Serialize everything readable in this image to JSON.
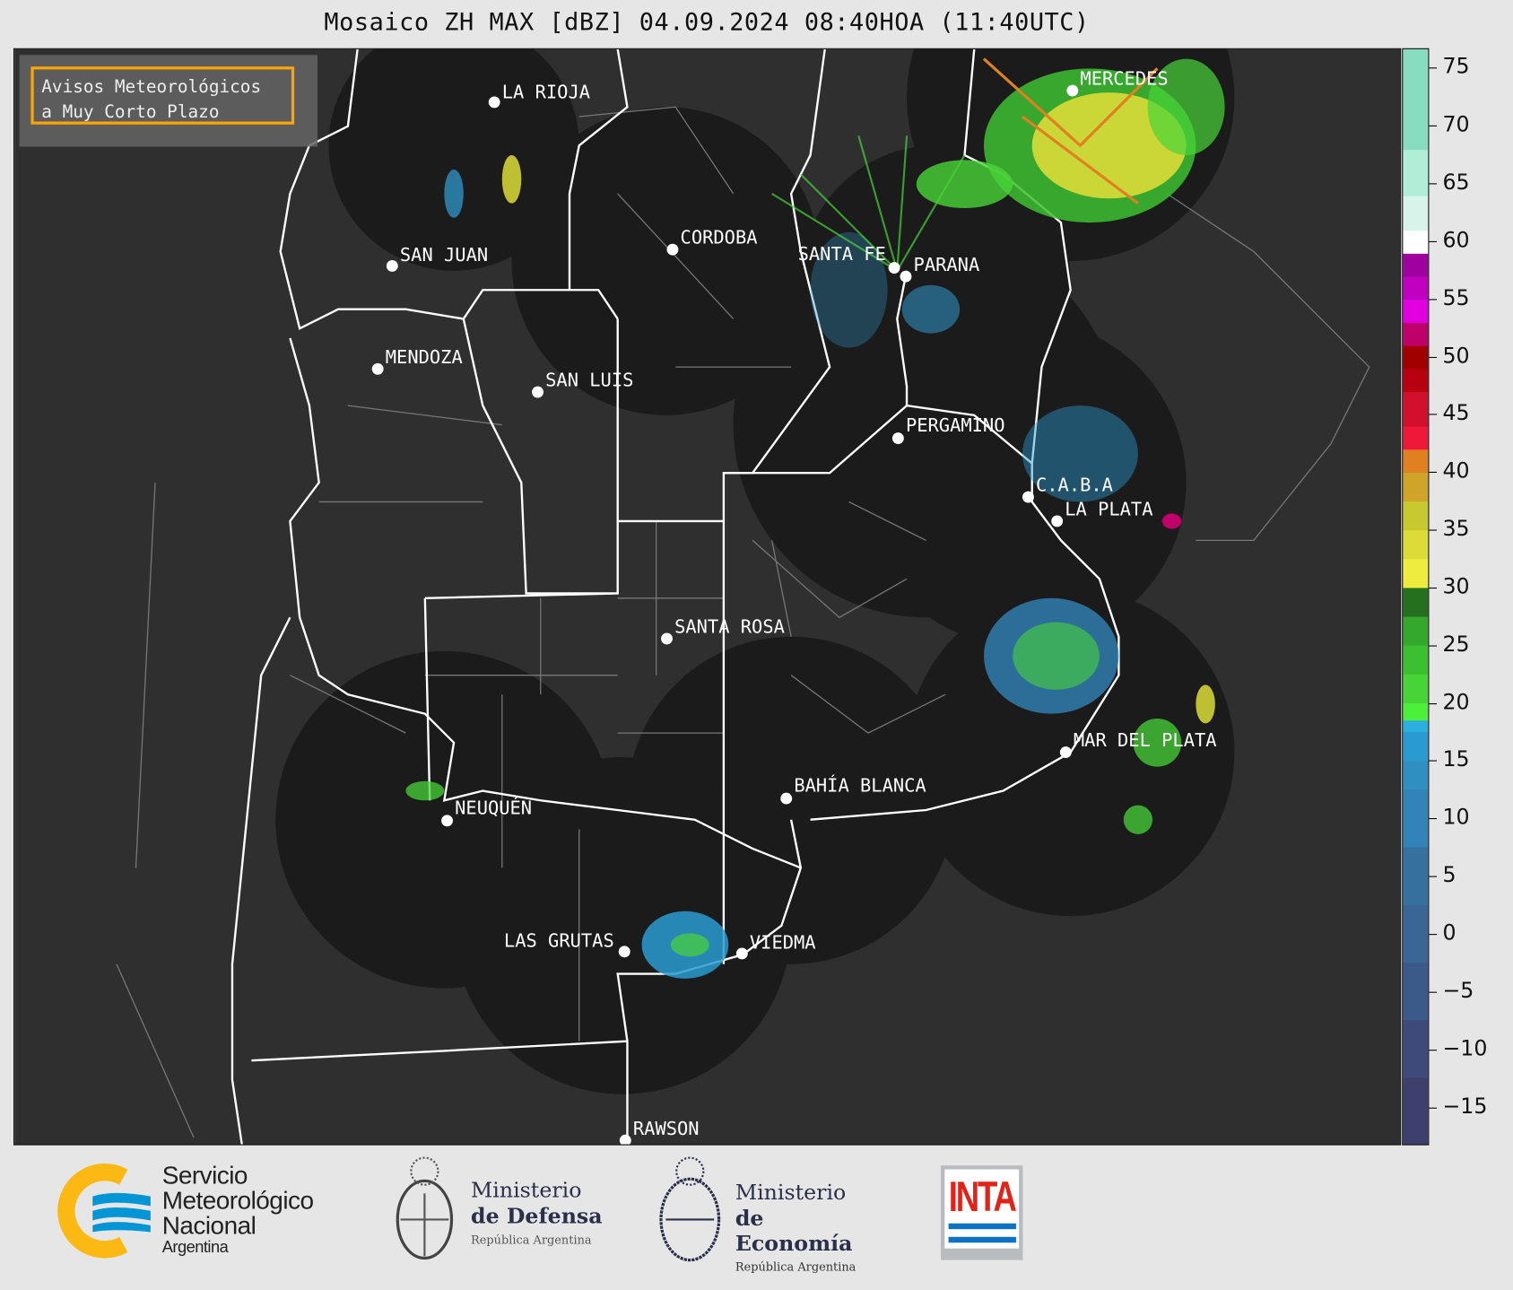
{
  "title": "Mosaico ZH MAX [dBZ] 04.09.2024 08:40HOA (11:40UTC)",
  "warning_box": {
    "line1": "Avisos Meteorológicos",
    "line2": "a Muy Corto Plazo",
    "border_color": "#ffa500"
  },
  "cities": [
    {
      "name": "LA RIOJA"
    },
    {
      "name": "SAN JUAN"
    },
    {
      "name": "CORDOBA"
    },
    {
      "name": "SANTA FE"
    },
    {
      "name": "PARANA"
    },
    {
      "name": "MERCEDES"
    },
    {
      "name": "MENDOZA"
    },
    {
      "name": "SAN LUIS"
    },
    {
      "name": "PERGAMINO"
    },
    {
      "name": "C.A.B.A"
    },
    {
      "name": "LA PLATA"
    },
    {
      "name": "SANTA ROSA"
    },
    {
      "name": "MAR DEL PLATA"
    },
    {
      "name": "BAHÍA BLANCA"
    },
    {
      "name": "NEUQUÉN"
    },
    {
      "name": "LAS GRUTAS"
    },
    {
      "name": "VIEDMA"
    },
    {
      "name": "RAWSON"
    }
  ],
  "colorbar": {
    "unit": "dBZ",
    "ticks": [
      "75",
      "70",
      "65",
      "60",
      "55",
      "50",
      "45",
      "40",
      "35",
      "30",
      "25",
      "20",
      "15",
      "10",
      "5",
      "0",
      "−5",
      "−10",
      "−15"
    ],
    "tick_values": [
      75,
      70,
      65,
      60,
      55,
      50,
      45,
      40,
      35,
      30,
      25,
      20,
      15,
      10,
      5,
      0,
      -5,
      -10,
      -15
    ],
    "bins": [
      {
        "from": -19,
        "to": -12.5,
        "color": "#3d406a"
      },
      {
        "from": -12.5,
        "to": -7.5,
        "color": "#3d4a7a"
      },
      {
        "from": -7.5,
        "to": -2.5,
        "color": "#3b5a8a"
      },
      {
        "from": -2.5,
        "to": 2.5,
        "color": "#3a6696"
      },
      {
        "from": 2.5,
        "to": 7.5,
        "color": "#36709e"
      },
      {
        "from": 7.5,
        "to": 12.5,
        "color": "#3283b8"
      },
      {
        "from": 12.5,
        "to": 15,
        "color": "#2e8fc0"
      },
      {
        "from": 15,
        "to": 17.5,
        "color": "#2a9bd0"
      },
      {
        "from": 17.5,
        "to": 18.5,
        "color": "#2ab0e0"
      },
      {
        "from": 18.5,
        "to": 20,
        "color": "#4cf03a"
      },
      {
        "from": 20,
        "to": 22.5,
        "color": "#48d438"
      },
      {
        "from": 22.5,
        "to": 25,
        "color": "#3cc030"
      },
      {
        "from": 25,
        "to": 27.5,
        "color": "#33a82c"
      },
      {
        "from": 27.5,
        "to": 30,
        "color": "#24701f"
      },
      {
        "from": 30,
        "to": 32.5,
        "color": "#eeec3c"
      },
      {
        "from": 32.5,
        "to": 35,
        "color": "#dcdc38"
      },
      {
        "from": 35,
        "to": 37.5,
        "color": "#c8c830"
      },
      {
        "from": 37.5,
        "to": 40,
        "color": "#d0a428"
      },
      {
        "from": 40,
        "to": 42,
        "color": "#e08020"
      },
      {
        "from": 42,
        "to": 44,
        "color": "#f01838"
      },
      {
        "from": 44,
        "to": 47,
        "color": "#d0102c"
      },
      {
        "from": 47,
        "to": 49,
        "color": "#b80010"
      },
      {
        "from": 49,
        "to": 51,
        "color": "#a00000"
      },
      {
        "from": 51,
        "to": 53,
        "color": "#c0006a"
      },
      {
        "from": 53,
        "to": 55,
        "color": "#e000e0"
      },
      {
        "from": 55,
        "to": 57,
        "color": "#c000c0"
      },
      {
        "from": 57,
        "to": 59,
        "color": "#a000a0"
      },
      {
        "from": 59,
        "to": 61,
        "color": "#ffffff"
      },
      {
        "from": 61,
        "to": 64,
        "color": "#d8f4ea"
      },
      {
        "from": 64,
        "to": 68,
        "color": "#b0eed8"
      },
      {
        "from": 68,
        "to": 77,
        "color": "#88dcc0"
      }
    ]
  },
  "logos": {
    "smn": {
      "line1": "Servicio",
      "line2": "Meteorológico",
      "line3": "Nacional",
      "line4": "Argentina"
    },
    "defensa": {
      "line1": "Ministerio",
      "line2": "de Defensa",
      "line3": "República Argentina"
    },
    "economia": {
      "line1": "Ministerio",
      "line2": "de Economía",
      "line3": "República Argentina"
    },
    "inta": {
      "text": "INTA"
    }
  }
}
